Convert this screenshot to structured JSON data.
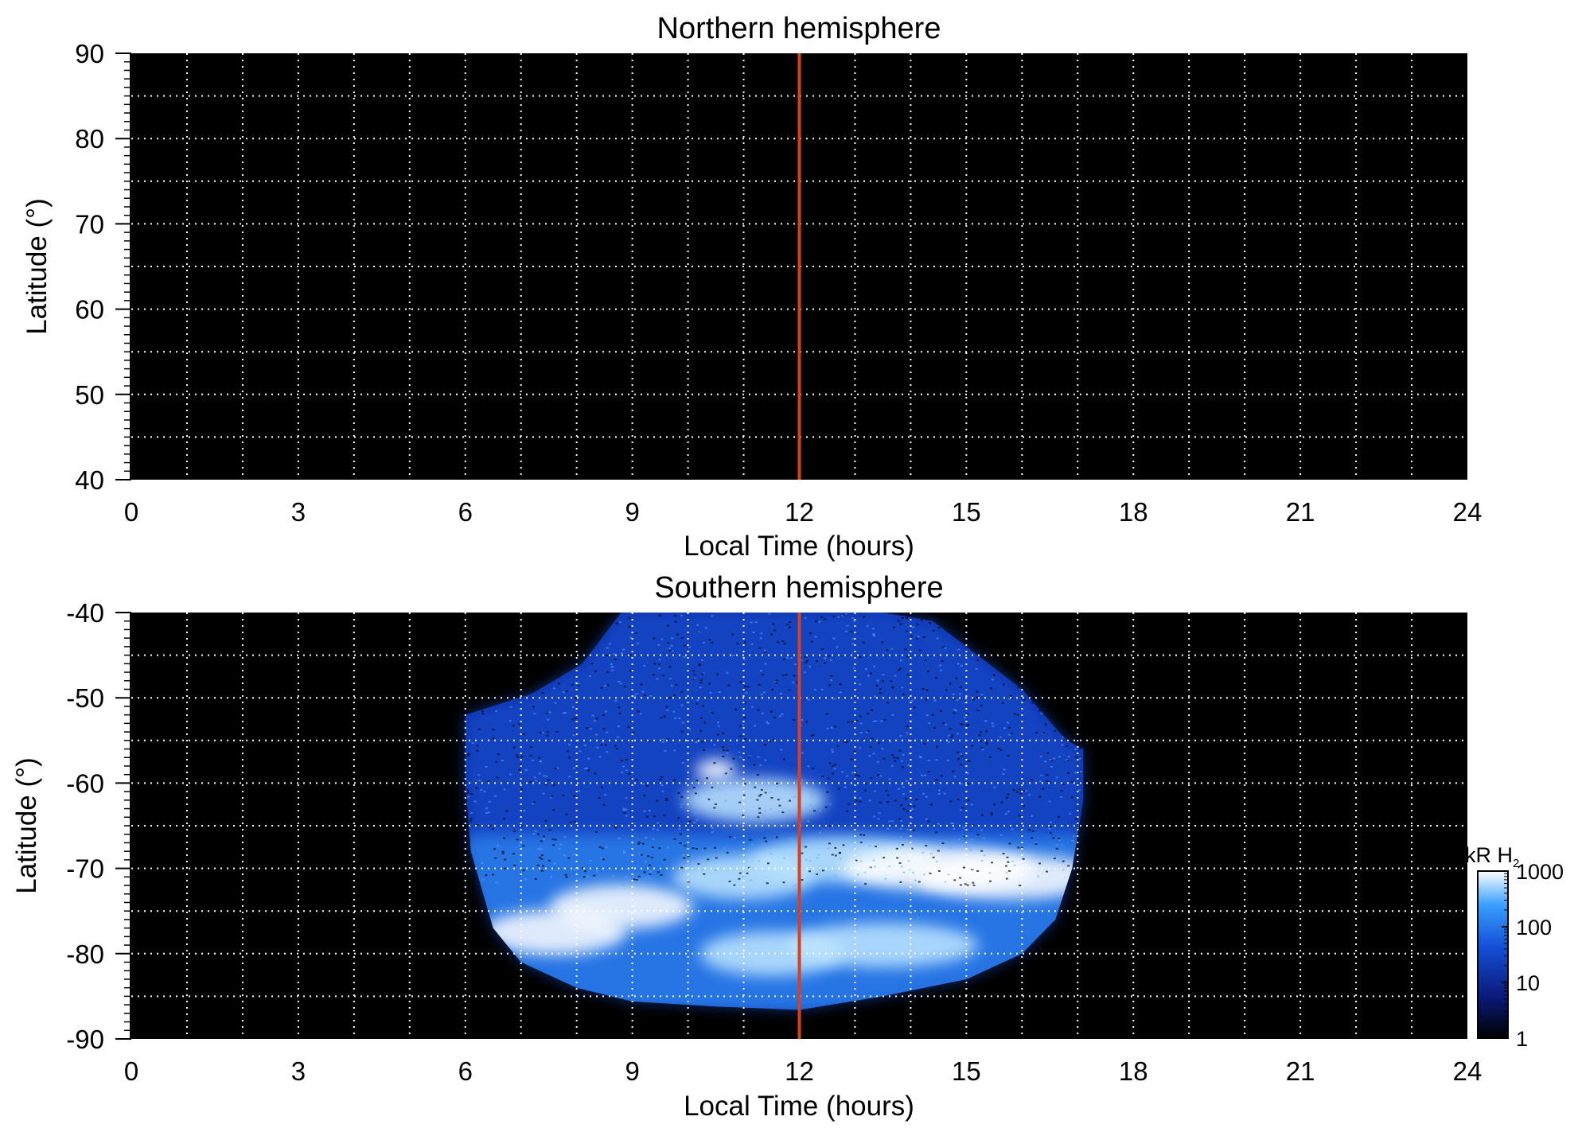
{
  "chart_data": [
    {
      "type": "heatmap",
      "title": "Northern hemisphere",
      "xlabel": "Local Time (hours)",
      "ylabel": "Latitude (°)",
      "xlim": [
        0,
        24
      ],
      "ylim": [
        40,
        90
      ],
      "xticks": [
        "0",
        "3",
        "6",
        "9",
        "12",
        "15",
        "18",
        "21",
        "24"
      ],
      "yticks": [
        "40",
        "50",
        "60",
        "70",
        "80",
        "90"
      ],
      "grid": true,
      "background": "#000000",
      "marker_line": {
        "x": 12,
        "color": "#d9401c"
      },
      "emission_regions": []
    },
    {
      "type": "heatmap",
      "title": "Southern hemisphere",
      "xlabel": "Local Time (hours)",
      "ylabel": "Latitude (°)",
      "xlim": [
        0,
        24
      ],
      "ylim": [
        -90,
        -40
      ],
      "xticks": [
        "0",
        "3",
        "6",
        "9",
        "12",
        "15",
        "18",
        "21",
        "24"
      ],
      "yticks": [
        "-90",
        "-80",
        "-70",
        "-60",
        "-50",
        "-40"
      ],
      "grid": true,
      "background": "#000000",
      "marker_line": {
        "x": 12,
        "color": "#d9401c"
      },
      "coverage_outline": [
        [
          6,
          -52
        ],
        [
          7.2,
          -49.5
        ],
        [
          8.1,
          -46
        ],
        [
          8.8,
          -40
        ],
        [
          13.5,
          -40
        ],
        [
          14.4,
          -41
        ],
        [
          16,
          -49
        ],
        [
          16.8,
          -55
        ],
        [
          17.1,
          -56
        ],
        [
          17.1,
          -62
        ],
        [
          16.9,
          -70
        ],
        [
          16.6,
          -76
        ],
        [
          16,
          -80
        ],
        [
          15,
          -83
        ],
        [
          13.5,
          -85
        ],
        [
          12,
          -86.6
        ],
        [
          10.5,
          -86.2
        ],
        [
          9,
          -85.6
        ],
        [
          8,
          -84
        ],
        [
          7,
          -81
        ],
        [
          6.5,
          -77
        ],
        [
          6.1,
          -68
        ],
        [
          6,
          -60
        ]
      ],
      "emission_regions": [
        {
          "lt": 7.6,
          "lat": -77.5,
          "intensity_kR": 1000
        },
        {
          "lt": 8.8,
          "lat": -74.5,
          "intensity_kR": 600
        },
        {
          "lt": 10.5,
          "lat": -58.5,
          "intensity_kR": 1000
        },
        {
          "lt": 11.2,
          "lat": -62,
          "intensity_kR": 200
        },
        {
          "lt": 11.0,
          "lat": -71,
          "intensity_kR": 250
        },
        {
          "lt": 12.8,
          "lat": -69,
          "intensity_kR": 400
        },
        {
          "lt": 14.5,
          "lat": -70,
          "intensity_kR": 800
        },
        {
          "lt": 15.8,
          "lat": -71,
          "intensity_kR": 900
        },
        {
          "lt": 11.5,
          "lat": -80,
          "intensity_kR": 250
        },
        {
          "lt": 13.5,
          "lat": -79,
          "intensity_kR": 200
        }
      ]
    }
  ],
  "colorbar": {
    "label": "kR H",
    "label_sub": "2",
    "scale": "log",
    "range": [
      1,
      1000
    ],
    "ticks": [
      "1",
      "10",
      "100",
      "1000"
    ],
    "colors": [
      "#000000",
      "#0a1a7a",
      "#1450d8",
      "#3aa0ff",
      "#ffffff"
    ]
  }
}
